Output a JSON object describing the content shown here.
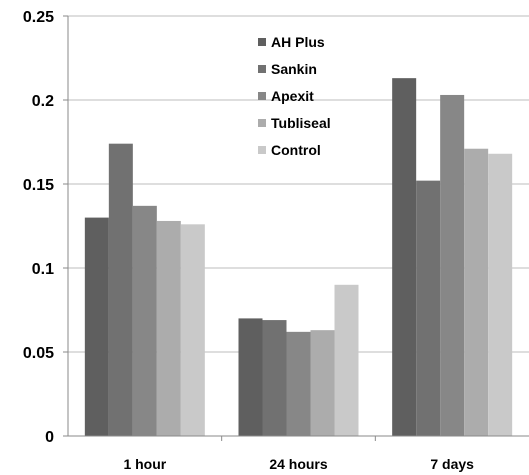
{
  "chart_data": {
    "type": "bar",
    "categories": [
      "1 hour",
      "24 hours",
      "7 days"
    ],
    "series": [
      {
        "name": "AH Plus",
        "color": "#5f5f5f",
        "values": [
          0.13,
          0.07,
          0.213
        ]
      },
      {
        "name": "Sankin",
        "color": "#717171",
        "values": [
          0.174,
          0.069,
          0.152
        ]
      },
      {
        "name": "Apexit",
        "color": "#878787",
        "values": [
          0.137,
          0.062,
          0.203
        ]
      },
      {
        "name": "Tubliseal",
        "color": "#acacac",
        "values": [
          0.128,
          0.063,
          0.171
        ]
      },
      {
        "name": "Control",
        "color": "#c9c9c9",
        "values": [
          0.126,
          0.09,
          0.168
        ]
      }
    ],
    "yticks": [
      "0",
      "0.05",
      "0.1",
      "0.15",
      "0.2",
      "0.25"
    ],
    "ylim": [
      0,
      0.25
    ],
    "grid": true,
    "legend_position": "top-center",
    "title": "",
    "xlabel": "",
    "ylabel": ""
  }
}
